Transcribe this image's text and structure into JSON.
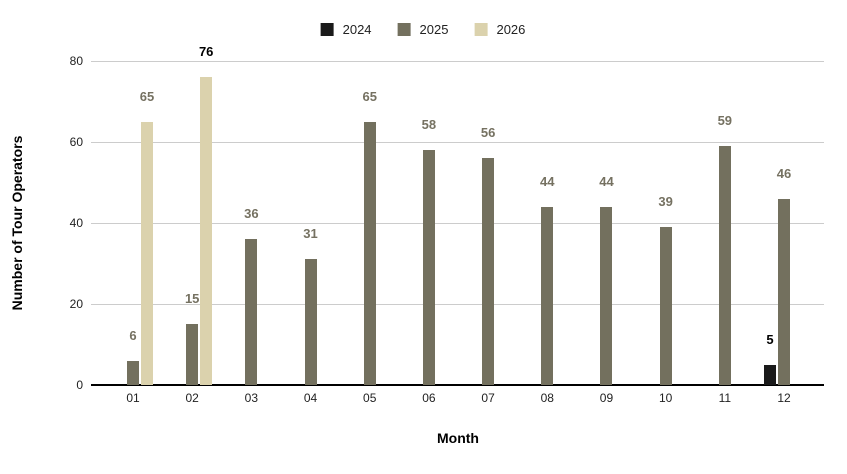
{
  "chart_data": {
    "type": "bar",
    "title": "",
    "xlabel": "Month",
    "ylabel": "Number of Tour Operators",
    "categories": [
      "01",
      "02",
      "03",
      "04",
      "05",
      "06",
      "07",
      "08",
      "09",
      "10",
      "11",
      "12"
    ],
    "series": [
      {
        "name": "2024",
        "color": "#1a1a1a",
        "label_color": "#000000",
        "values": [
          null,
          null,
          null,
          null,
          null,
          null,
          null,
          null,
          null,
          null,
          null,
          5
        ]
      },
      {
        "name": "2025",
        "color": "#73705e",
        "label_color": "#757161",
        "values": [
          6,
          15,
          36,
          31,
          65,
          58,
          56,
          44,
          44,
          39,
          59,
          46
        ]
      },
      {
        "name": "2026",
        "color": "#dbd2ad",
        "label_color": "#757161",
        "values": [
          65,
          76,
          null,
          null,
          null,
          null,
          null,
          null,
          null,
          null,
          null,
          null
        ]
      }
    ],
    "ylim": [
      0,
      80
    ],
    "yticks": [
      0,
      20,
      40,
      60,
      80
    ],
    "grid": true,
    "legend_position": "top",
    "colors": {
      "gridline": "#cccccc",
      "baseline": "#000000",
      "tick_text": "#222222"
    }
  }
}
